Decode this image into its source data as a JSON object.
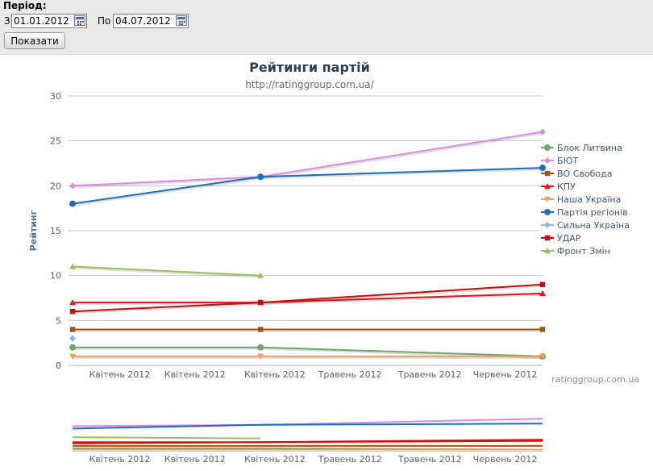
{
  "filter": {
    "period_label": "Період:",
    "from_label": "З",
    "from_value": "01.01.2012",
    "to_label": "По",
    "to_value": "04.07.2012",
    "show_button": "Показати",
    "calendar_icon": "calendar-icon"
  },
  "chart_data": {
    "type": "line",
    "title": "Рейтинги партій",
    "subtitle": "http://ratinggroup.com.ua/",
    "ylabel": "Рейтинг",
    "xlabel": "",
    "ylim": [
      0,
      30
    ],
    "yticks": [
      0,
      5,
      10,
      15,
      20,
      25,
      30
    ],
    "xlim": [
      0,
      100
    ],
    "x_ticks": [
      {
        "x": 9,
        "label": "Квітень 2012"
      },
      {
        "x": 25,
        "label": "Квітень 2012"
      },
      {
        "x": 42,
        "label": "Квітень 2012"
      },
      {
        "x": 58,
        "label": "Травень 2012"
      },
      {
        "x": 75,
        "label": "Травень 2012"
      },
      {
        "x": 91,
        "label": "Червень 2012"
      }
    ],
    "grid": true,
    "legend_position": "right",
    "credits": "ratinggroup.com.ua",
    "navigator": true,
    "series": [
      {
        "name": "Блок Литвина",
        "color": "#6fa56f",
        "marker": "circle",
        "x": [
          0,
          40,
          100
        ],
        "y": [
          2,
          2,
          1
        ]
      },
      {
        "name": "БЮТ",
        "color": "#d98ee0",
        "marker": "diamond",
        "x": [
          0,
          40,
          100
        ],
        "y": [
          20,
          21,
          26
        ]
      },
      {
        "name": "ВО Свобода",
        "color": "#a0521a",
        "marker": "square",
        "x": [
          0,
          40,
          100
        ],
        "y": [
          4,
          4,
          4
        ]
      },
      {
        "name": "КПУ",
        "color": "#e31515",
        "marker": "triangle",
        "x": [
          0,
          40,
          100
        ],
        "y": [
          7,
          7,
          8
        ]
      },
      {
        "name": "Наша Україна",
        "color": "#f0a060",
        "marker": "triangle-down",
        "x": [
          0,
          40,
          100
        ],
        "y": [
          1,
          1,
          1
        ]
      },
      {
        "name": "Партія регіонів",
        "color": "#1f6fb8",
        "marker": "circle",
        "x": [
          0,
          40,
          100
        ],
        "y": [
          18,
          21,
          22
        ]
      },
      {
        "name": "Сильна Україна",
        "color": "#8fb3e6",
        "marker": "diamond",
        "x": [
          0
        ],
        "y": [
          3
        ]
      },
      {
        "name": "УДАР",
        "color": "#c90d0d",
        "marker": "square",
        "x": [
          0,
          40,
          100
        ],
        "y": [
          6,
          7,
          9
        ]
      },
      {
        "name": "Фронт Змін",
        "color": "#9cbf60",
        "marker": "triangle",
        "x": [
          0,
          40
        ],
        "y": [
          11,
          10
        ]
      }
    ]
  }
}
